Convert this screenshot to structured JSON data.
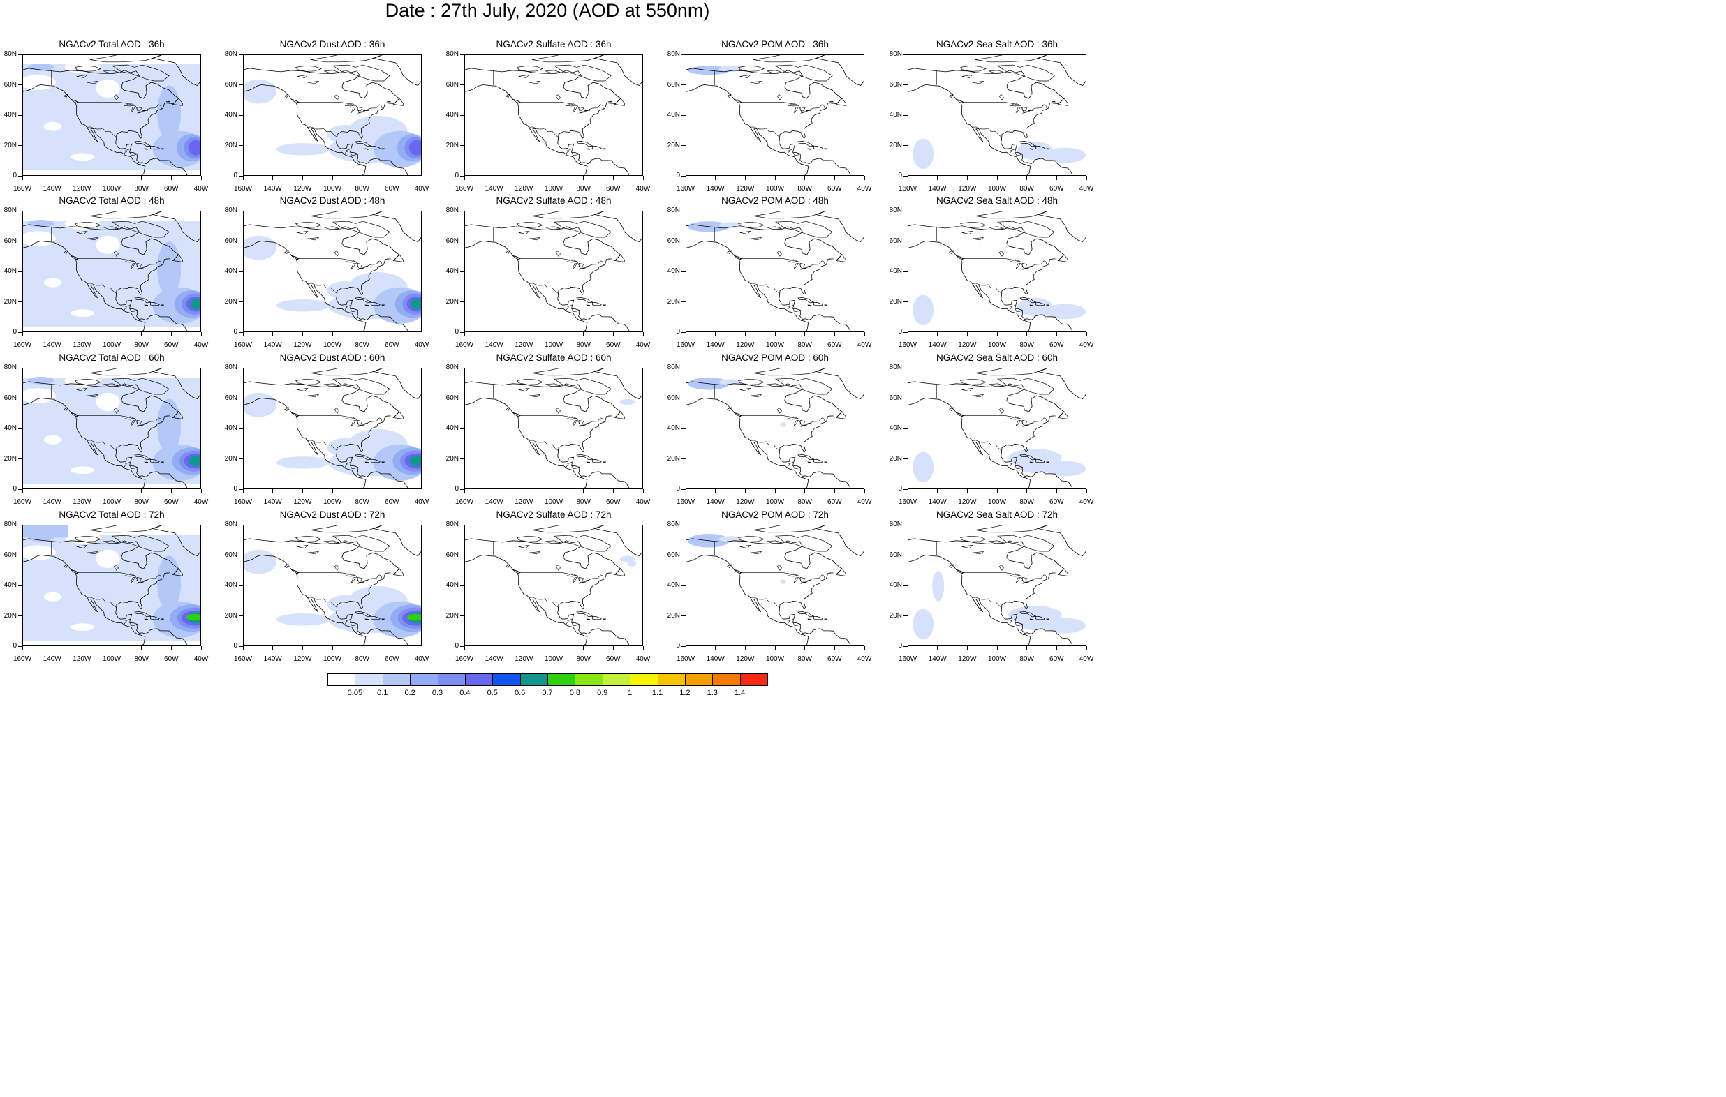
{
  "title": "Date : 27th July, 2020 (AOD at 550nm)",
  "map": {
    "lat_ticks": [
      "80N",
      "60N",
      "40N",
      "20N",
      "0"
    ],
    "lon_ticks": [
      "160W",
      "140W",
      "120W",
      "100W",
      "80W",
      "60W",
      "40W"
    ],
    "extent": {
      "lon_min": -160,
      "lon_max": -40,
      "lat_min": 0,
      "lat_max": 80
    }
  },
  "rows": [
    {
      "forecast_hour": "36h",
      "panels": [
        {
          "title": "NGACv2 Total AOD : 36h",
          "species": "total"
        },
        {
          "title": "NGACv2 Dust AOD : 36h",
          "species": "dust"
        },
        {
          "title": "NGACv2 Sulfate AOD : 36h",
          "species": "sulfate"
        },
        {
          "title": "NGACv2 POM AOD : 36h",
          "species": "pom"
        },
        {
          "title": "NGACv2 Sea Salt AOD : 36h",
          "species": "seasalt"
        }
      ]
    },
    {
      "forecast_hour": "48h",
      "panels": [
        {
          "title": "NGACv2 Total AOD : 48h",
          "species": "total"
        },
        {
          "title": "NGACv2 Dust AOD : 48h",
          "species": "dust"
        },
        {
          "title": "NGACv2 Sulfate AOD : 48h",
          "species": "sulfate"
        },
        {
          "title": "NGACv2 POM AOD : 48h",
          "species": "pom"
        },
        {
          "title": "NGACv2 Sea Salt AOD : 48h",
          "species": "seasalt"
        }
      ]
    },
    {
      "forecast_hour": "60h",
      "panels": [
        {
          "title": "NGACv2 Total AOD : 60h",
          "species": "total"
        },
        {
          "title": "NGACv2 Dust AOD : 60h",
          "species": "dust"
        },
        {
          "title": "NGACv2 Sulfate AOD : 60h",
          "species": "sulfate"
        },
        {
          "title": "NGACv2 POM AOD : 60h",
          "species": "pom"
        },
        {
          "title": "NGACv2 Sea Salt AOD : 60h",
          "species": "seasalt"
        }
      ]
    },
    {
      "forecast_hour": "72h",
      "panels": [
        {
          "title": "NGACv2 Total AOD : 72h",
          "species": "total"
        },
        {
          "title": "NGACv2 Dust AOD : 72h",
          "species": "dust"
        },
        {
          "title": "NGACv2 Sulfate AOD : 72h",
          "species": "sulfate"
        },
        {
          "title": "NGACv2 POM AOD : 72h",
          "species": "pom"
        },
        {
          "title": "NGACv2 Sea Salt  AOD : 72h",
          "species": "seasalt"
        }
      ]
    }
  ],
  "colorbar": {
    "labels": [
      "0.05",
      "0.1",
      "0.2",
      "0.3",
      "0.4",
      "0.5",
      "0.6",
      "0.7",
      "0.8",
      "0.9",
      "1",
      "1.1",
      "1.2",
      "1.3",
      "1.4"
    ],
    "colors": [
      "#ffffff",
      "#d6e2fb",
      "#b4c8f7",
      "#93adf5",
      "#7e8ff3",
      "#6868ee",
      "#0f57f0",
      "#109890",
      "#2ed10f",
      "#87e815",
      "#c4f13b",
      "#f7f400",
      "#f8c300",
      "#f7a000",
      "#f57a00",
      "#f72a12"
    ]
  }
}
